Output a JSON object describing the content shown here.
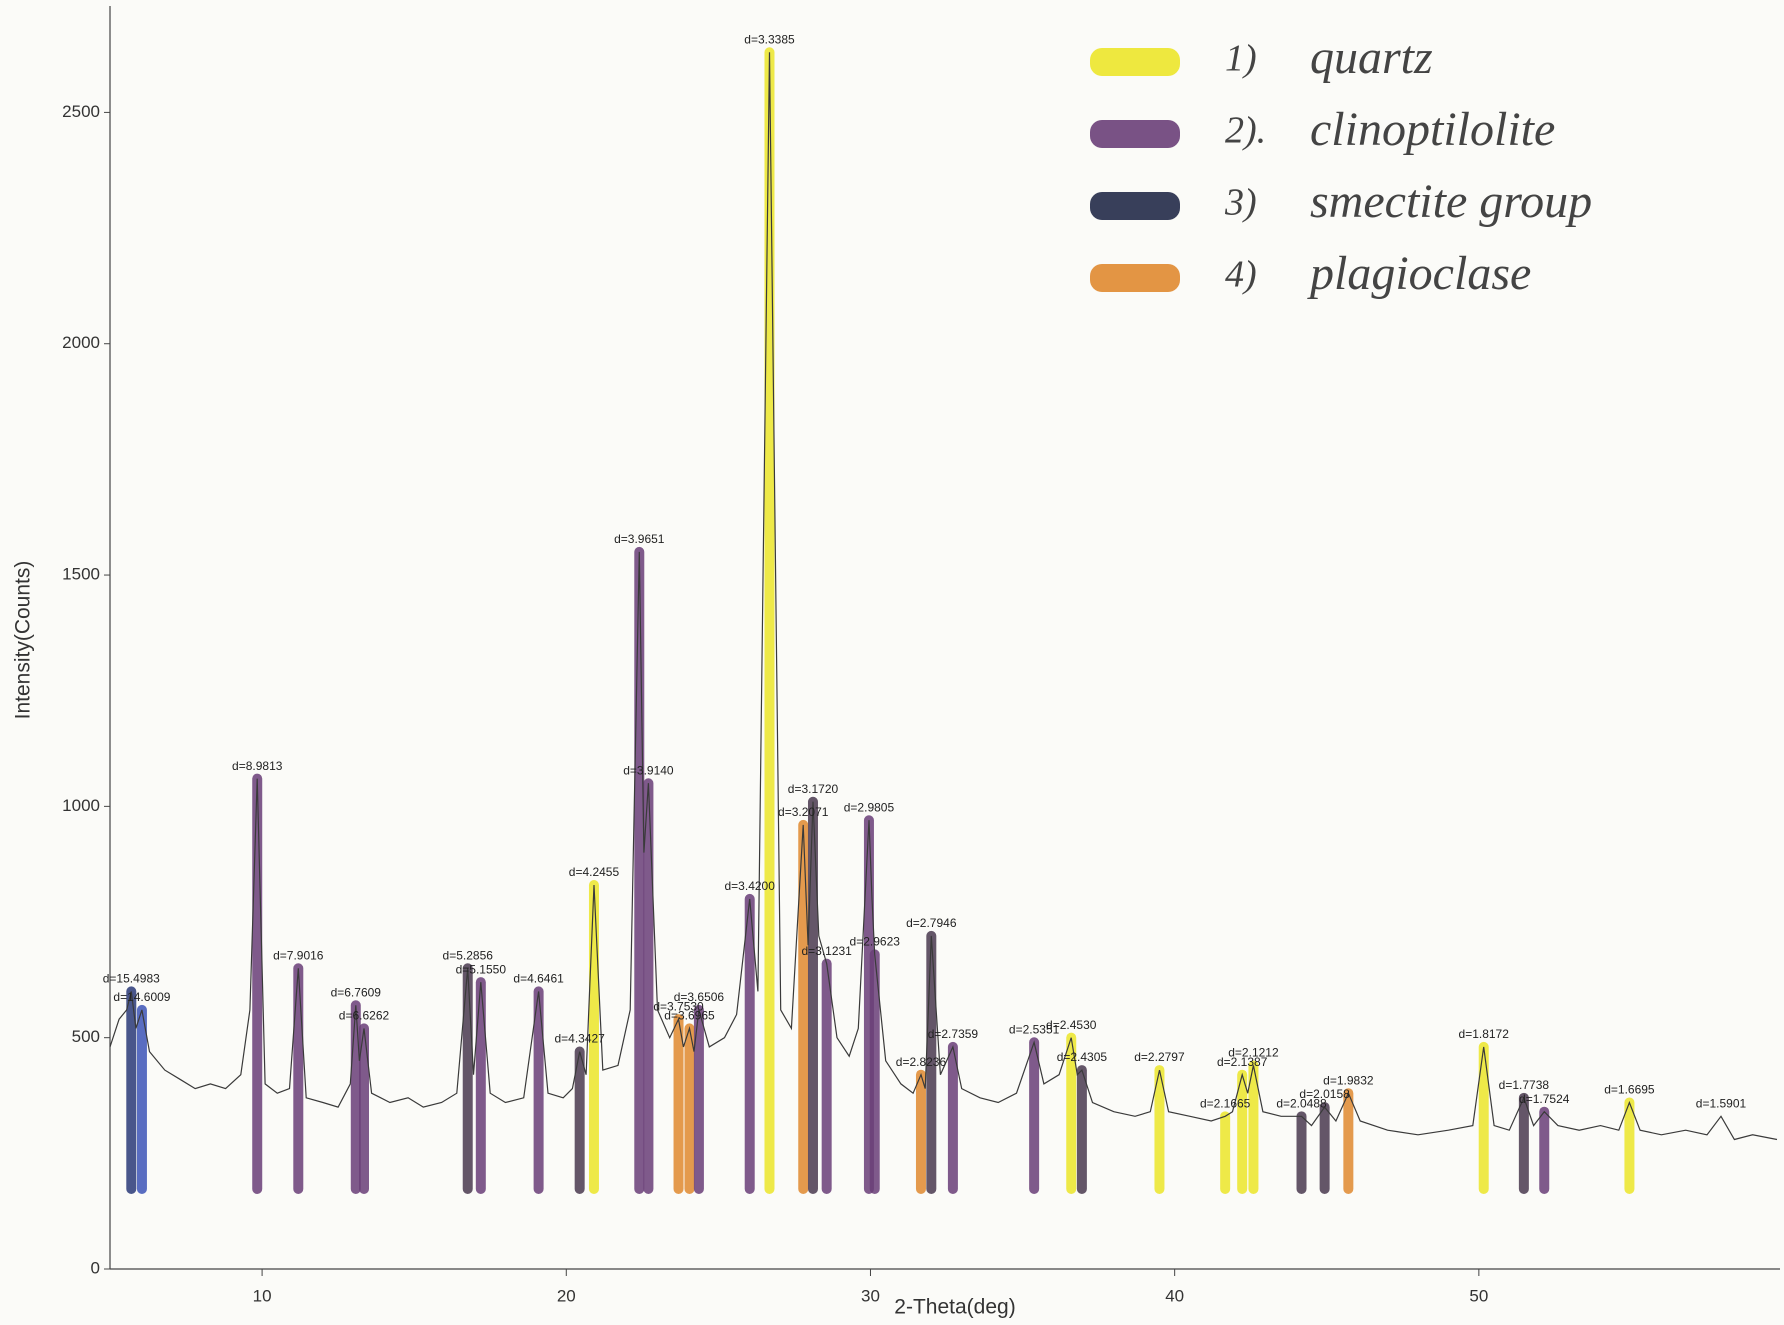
{
  "chart_data": {
    "type": "line",
    "xlabel": "2-Theta(deg)",
    "ylabel": "Intensity(Counts)",
    "xlim": [
      5.0,
      59.9
    ],
    "ylim": [
      0,
      2730
    ],
    "xticks": [
      10,
      20,
      30,
      40,
      50
    ],
    "yticks": [
      0,
      500,
      1000,
      1500,
      2000,
      2500
    ],
    "color": "#3a3a3a",
    "x": [
      5.0,
      5.3,
      5.55,
      5.7,
      5.85,
      6.05,
      6.3,
      6.8,
      7.3,
      7.8,
      8.3,
      8.8,
      9.3,
      9.6,
      9.84,
      10.1,
      10.5,
      10.9,
      11.19,
      11.45,
      12.0,
      12.5,
      12.9,
      13.08,
      13.2,
      13.35,
      13.6,
      14.2,
      14.8,
      15.3,
      15.9,
      16.4,
      16.76,
      16.95,
      17.19,
      17.5,
      18.0,
      18.6,
      19.09,
      19.4,
      19.9,
      20.2,
      20.44,
      20.65,
      20.91,
      21.2,
      21.7,
      22.1,
      22.4,
      22.55,
      22.7,
      23.0,
      23.4,
      23.69,
      23.85,
      24.05,
      24.2,
      24.36,
      24.7,
      25.2,
      25.6,
      26.03,
      26.3,
      26.68,
      27.05,
      27.4,
      27.79,
      27.95,
      28.11,
      28.3,
      28.56,
      28.9,
      29.3,
      29.6,
      29.95,
      30.05,
      30.14,
      30.5,
      31.0,
      31.4,
      31.66,
      31.8,
      32.0,
      32.3,
      32.71,
      33.0,
      33.6,
      34.2,
      34.8,
      35.38,
      35.7,
      36.2,
      36.6,
      36.8,
      36.95,
      37.3,
      38.0,
      38.7,
      39.2,
      39.5,
      39.8,
      40.5,
      41.2,
      41.66,
      41.9,
      42.22,
      42.4,
      42.59,
      42.9,
      43.5,
      44.17,
      44.5,
      44.93,
      45.3,
      45.71,
      46.1,
      47.0,
      48.0,
      49.0,
      49.8,
      50.16,
      50.5,
      51.0,
      51.48,
      51.8,
      52.15,
      52.6,
      53.3,
      54.0,
      54.6,
      54.95,
      55.3,
      56.0,
      56.8,
      57.5,
      57.96,
      58.4,
      59.0,
      59.8
    ],
    "values": [
      480,
      540,
      560,
      600,
      520,
      560,
      470,
      430,
      410,
      390,
      400,
      390,
      420,
      560,
      1060,
      400,
      380,
      390,
      650,
      370,
      360,
      350,
      400,
      570,
      450,
      520,
      380,
      360,
      370,
      350,
      360,
      380,
      650,
      420,
      620,
      380,
      360,
      370,
      600,
      380,
      370,
      390,
      470,
      420,
      830,
      430,
      440,
      560,
      1550,
      900,
      1050,
      560,
      500,
      540,
      480,
      520,
      470,
      560,
      480,
      500,
      550,
      800,
      600,
      2630,
      560,
      520,
      960,
      700,
      1010,
      720,
      660,
      500,
      460,
      520,
      970,
      800,
      680,
      450,
      400,
      380,
      420,
      390,
      720,
      420,
      480,
      390,
      370,
      360,
      380,
      490,
      400,
      420,
      500,
      420,
      430,
      360,
      340,
      330,
      340,
      430,
      340,
      330,
      320,
      330,
      340,
      420,
      380,
      440,
      340,
      330,
      330,
      310,
      350,
      320,
      380,
      320,
      300,
      290,
      300,
      310,
      480,
      310,
      300,
      370,
      310,
      340,
      310,
      300,
      310,
      300,
      360,
      300,
      290,
      300,
      290,
      330,
      280,
      290,
      280
    ],
    "peaks": [
      {
        "label": "d=15.4983",
        "x": 5.7,
        "y": 600,
        "color": "#2a3a78"
      },
      {
        "label": "d=14.6009",
        "x": 6.05,
        "y": 560,
        "color": "#3d55b8"
      },
      {
        "label": "d=8.9813",
        "x": 9.84,
        "y": 1060,
        "color": "#6a3f78"
      },
      {
        "label": "d=7.9016",
        "x": 11.19,
        "y": 650,
        "color": "#6a3f78"
      },
      {
        "label": "d=6.7609",
        "x": 13.08,
        "y": 570,
        "color": "#6a3f78"
      },
      {
        "label": "d=6.6262",
        "x": 13.35,
        "y": 520,
        "color": "#6a3f78"
      },
      {
        "label": "d=5.2856",
        "x": 16.76,
        "y": 650,
        "color": "#4a3a50"
      },
      {
        "label": "d=5.1550",
        "x": 17.19,
        "y": 620,
        "color": "#6a3f78"
      },
      {
        "label": "d=4.6461",
        "x": 19.09,
        "y": 600,
        "color": "#6a3f78"
      },
      {
        "label": "d=4.3427",
        "x": 20.44,
        "y": 470,
        "color": "#4a3a50"
      },
      {
        "label": "d=4.2455",
        "x": 20.91,
        "y": 830,
        "color": "#ece62a"
      },
      {
        "label": "d=3.9651",
        "x": 22.4,
        "y": 1550,
        "color": "#6a3f78"
      },
      {
        "label": "d=3.9140",
        "x": 22.7,
        "y": 1050,
        "color": "#6a3f78"
      },
      {
        "label": "d=3.7530",
        "x": 23.69,
        "y": 540,
        "color": "#e08a30"
      },
      {
        "label": "d=3.6965",
        "x": 24.05,
        "y": 520,
        "color": "#e08a30"
      },
      {
        "label": "d=3.6506",
        "x": 24.36,
        "y": 560,
        "color": "#6a3f78"
      },
      {
        "label": "d=3.4200",
        "x": 26.03,
        "y": 800,
        "color": "#6a3f78"
      },
      {
        "label": "d=3.3385",
        "x": 26.68,
        "y": 2630,
        "color": "#ece62a"
      },
      {
        "label": "d=3.2071",
        "x": 27.79,
        "y": 960,
        "color": "#e08a30"
      },
      {
        "label": "d=3.1720",
        "x": 28.11,
        "y": 1010,
        "color": "#4a3a50"
      },
      {
        "label": "d=3.1231",
        "x": 28.56,
        "y": 660,
        "color": "#6a3f78"
      },
      {
        "label": "d=2.9805",
        "x": 29.95,
        "y": 970,
        "color": "#6a3f78"
      },
      {
        "label": "d=2.9623",
        "x": 30.14,
        "y": 680,
        "color": "#6a3f78"
      },
      {
        "label": "d=2.8236",
        "x": 31.66,
        "y": 420,
        "color": "#e08a30"
      },
      {
        "label": "d=2.7946",
        "x": 32.0,
        "y": 720,
        "color": "#4a3a50"
      },
      {
        "label": "d=2.7359",
        "x": 32.71,
        "y": 480,
        "color": "#6a3f78"
      },
      {
        "label": "d=2.5351",
        "x": 35.38,
        "y": 490,
        "color": "#6a3f78"
      },
      {
        "label": "d=2.4530",
        "x": 36.6,
        "y": 500,
        "color": "#ece62a"
      },
      {
        "label": "d=2.4305",
        "x": 36.95,
        "y": 430,
        "color": "#4a3a50"
      },
      {
        "label": "d=2.2797",
        "x": 39.5,
        "y": 430,
        "color": "#ece62a"
      },
      {
        "label": "d=2.1665",
        "x": 41.66,
        "y": 330,
        "color": "#ece62a"
      },
      {
        "label": "d=2.1387",
        "x": 42.22,
        "y": 420,
        "color": "#ece62a"
      },
      {
        "label": "d=2.1212",
        "x": 42.59,
        "y": 440,
        "color": "#ece62a"
      },
      {
        "label": "d=2.0488",
        "x": 44.17,
        "y": 330,
        "color": "#4a3a50"
      },
      {
        "label": "d=2.0158",
        "x": 44.93,
        "y": 350,
        "color": "#4a3a50"
      },
      {
        "label": "d=1.9832",
        "x": 45.71,
        "y": 380,
        "color": "#e08a30"
      },
      {
        "label": "d=1.8172",
        "x": 50.16,
        "y": 480,
        "color": "#ece62a"
      },
      {
        "label": "d=1.7738",
        "x": 51.48,
        "y": 370,
        "color": "#4a3a50"
      },
      {
        "label": "d=1.7524",
        "x": 52.15,
        "y": 340,
        "color": "#6a3f78"
      },
      {
        "label": "d=1.6695",
        "x": 54.95,
        "y": 360,
        "color": "#ece62a"
      },
      {
        "label": "d=1.5901",
        "x": 57.96,
        "y": 330,
        "color": null
      }
    ],
    "legend": [
      {
        "marker": "1)",
        "name": "quartz",
        "color": "#ece62a"
      },
      {
        "marker": "2).",
        "name": "clinoptilolite",
        "color": "#6a3f78"
      },
      {
        "marker": "3)",
        "name": "smectite group",
        "color": "#222a48"
      },
      {
        "marker": "4)",
        "name": "plagioclase",
        "color": "#e08a30"
      }
    ]
  }
}
